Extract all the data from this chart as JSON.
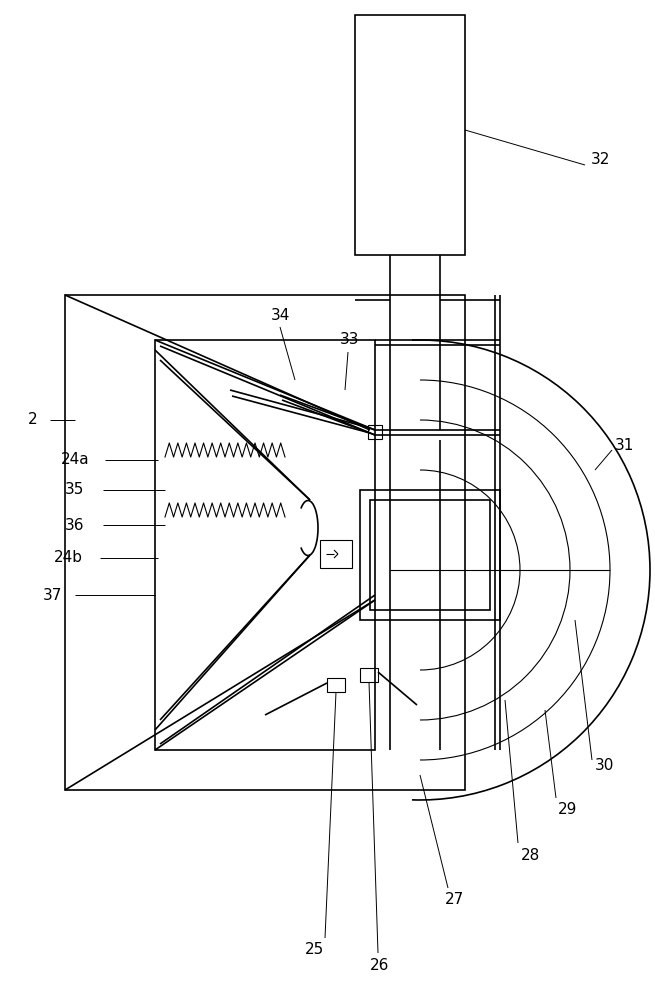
{
  "bg": "#ffffff",
  "lc": "#000000",
  "lw": 1.2,
  "tlw": 0.8,
  "fs": 11,
  "fig_w": 6.55,
  "fig_h": 10.0,
  "dpi": 100
}
